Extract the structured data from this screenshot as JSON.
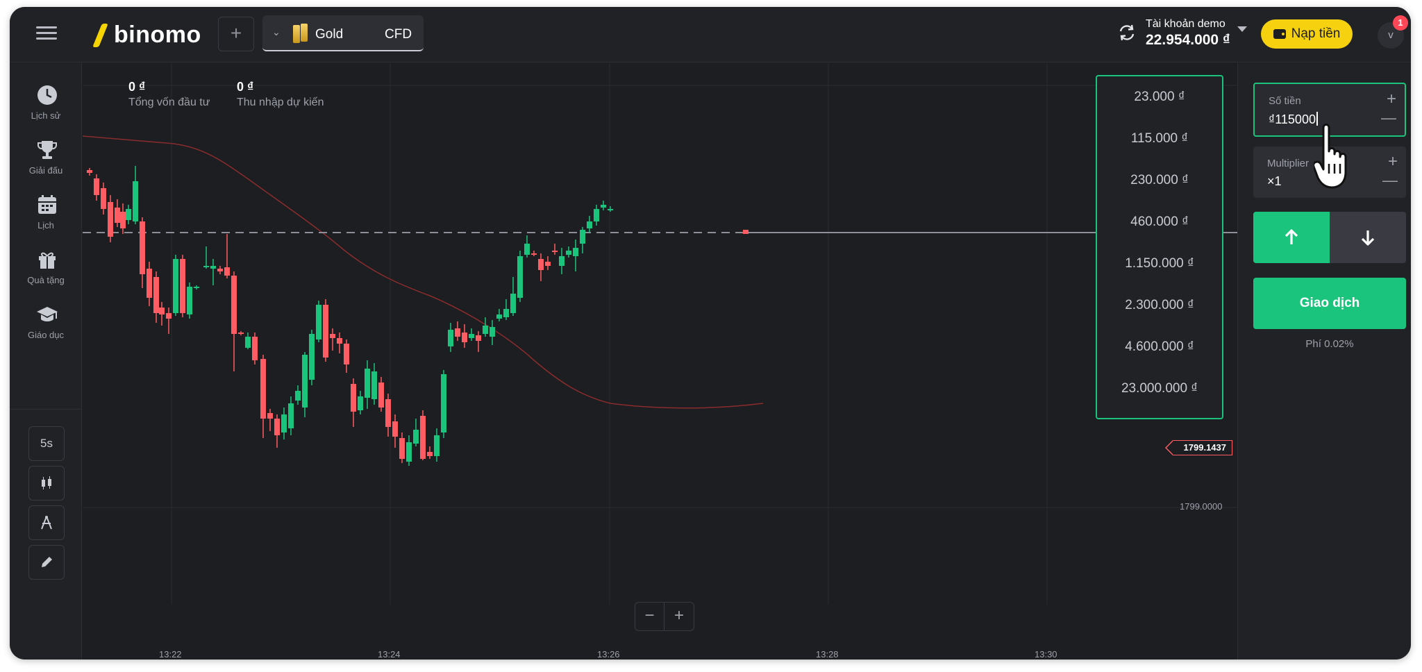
{
  "topbar": {
    "logo_text": "binomo",
    "add_label": "+",
    "asset": {
      "name": "Gold",
      "type": "CFD"
    },
    "account": {
      "label": "Tài khoản demo",
      "balance": "22.954.000 ₫"
    },
    "deposit_label": "Nạp tiền",
    "avatar_letter": "v",
    "notification_count": "1"
  },
  "sidebar": {
    "items": [
      {
        "label": "Lịch sử",
        "icon": "history-icon"
      },
      {
        "label": "Giải đấu",
        "icon": "trophy-icon"
      },
      {
        "label": "Lịch",
        "icon": "calendar-icon"
      },
      {
        "label": "Quà tặng",
        "icon": "gift-icon"
      },
      {
        "label": "Giáo dục",
        "icon": "education-icon"
      }
    ],
    "tools": {
      "timeframe": "5s",
      "chart_type_icon": "candlestick-icon",
      "indicators_icon": "indicators-icon",
      "drawing_icon": "pencil-icon"
    },
    "help_label": "?"
  },
  "chart": {
    "invest_value": "0 ₫",
    "invest_label": "Tổng vốn đầu tư",
    "income_value": "0 ₫",
    "income_label": "Thu nhập dự kiến",
    "current_price": "1799.1437",
    "price_level": "1799.0000",
    "time_ticks": [
      "13:22",
      "13:24",
      "13:26",
      "13:28",
      "13:30"
    ],
    "zoom_out": "−",
    "zoom_in": "+",
    "colors": {
      "up": "#1bc47d",
      "down": "#ff5c63",
      "ma": "#8b2c2c",
      "grid": "#2a2b30"
    }
  },
  "amount_dropdown": {
    "options": [
      "23.000 ₫",
      "115.000 ₫",
      "230.000 ₫",
      "460.000 ₫",
      "1.150.000 ₫",
      "2.300.000 ₫",
      "4.600.000 ₫",
      "23.000.000 ₫"
    ]
  },
  "trade_panel": {
    "amount_label": "Số tiền",
    "amount_value": "₫115000",
    "multiplier_label": "Multiplier",
    "multiplier_value": "×1",
    "plus": "+",
    "minus": "—",
    "trade_label": "Giao dịch",
    "fee_text": "Phí 0.02%"
  }
}
